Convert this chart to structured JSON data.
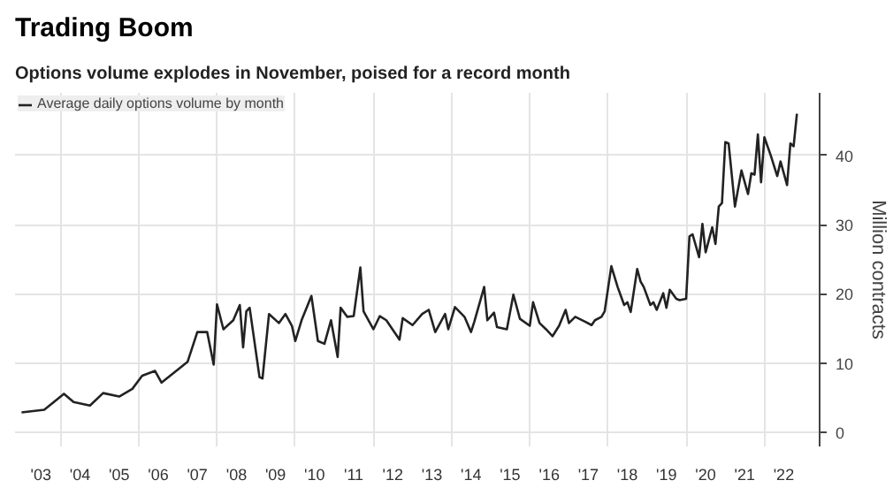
{
  "chart_data": {
    "type": "line",
    "title": "Trading Boom",
    "subtitle": "Options volume explodes in November, poised for a record month",
    "ylabel": "Million contracts",
    "legend": "top left",
    "grid": true,
    "line_style": "solid",
    "xlim": [
      "2002-11",
      "2023-06"
    ],
    "ylim": [
      -2,
      49
    ],
    "yticks": [
      0,
      10,
      20,
      30,
      40
    ],
    "xticks": [
      {
        "value": "2003-07",
        "label": "'03"
      },
      {
        "value": "2004-07",
        "label": "'04"
      },
      {
        "value": "2005-07",
        "label": "'05"
      },
      {
        "value": "2006-07",
        "label": "'06"
      },
      {
        "value": "2007-07",
        "label": "'07"
      },
      {
        "value": "2008-07",
        "label": "'08"
      },
      {
        "value": "2009-07",
        "label": "'09"
      },
      {
        "value": "2010-07",
        "label": "'10"
      },
      {
        "value": "2011-07",
        "label": "'11"
      },
      {
        "value": "2012-07",
        "label": "'12"
      },
      {
        "value": "2013-07",
        "label": "'13"
      },
      {
        "value": "2014-07",
        "label": "'14"
      },
      {
        "value": "2015-07",
        "label": "'15"
      },
      {
        "value": "2016-07",
        "label": "'16"
      },
      {
        "value": "2017-07",
        "label": "'17"
      },
      {
        "value": "2018-07",
        "label": "'18"
      },
      {
        "value": "2019-07",
        "label": "'19"
      },
      {
        "value": "2020-07",
        "label": "'20"
      },
      {
        "value": "2021-07",
        "label": "'21"
      },
      {
        "value": "2022-07",
        "label": "'22"
      },
      {
        "value": "2004-01",
        "label": null
      },
      {
        "value": "2006-01",
        "label": null
      },
      {
        "value": "2008-01",
        "label": null
      },
      {
        "value": "2010-01",
        "label": null
      },
      {
        "value": "2012-01",
        "label": null
      },
      {
        "value": "2014-01",
        "label": null
      },
      {
        "value": "2016-01",
        "label": null
      },
      {
        "value": "2018-01",
        "label": null
      },
      {
        "value": "2020-01",
        "label": null
      },
      {
        "value": "2022-01",
        "label": null
      }
    ],
    "x": [
      "2003-01",
      "2003-08",
      "2004-02",
      "2004-05",
      "2004-10",
      "2005-02",
      "2005-07",
      "2005-11",
      "2006-02",
      "2006-06",
      "2006-08",
      "2007-01",
      "2007-04",
      "2007-07",
      "2007-10",
      "2007-12",
      "2008-01",
      "2008-03",
      "2008-06",
      "2008-08",
      "2008-09",
      "2008-10",
      "2008-11",
      "2009-02",
      "2009-03",
      "2009-05",
      "2009-08",
      "2009-10",
      "2009-12",
      "2010-01",
      "2010-03",
      "2010-06",
      "2010-08",
      "2010-10",
      "2010-12",
      "2011-02",
      "2011-03",
      "2011-05",
      "2011-07",
      "2011-09",
      "2011-10",
      "2012-01",
      "2012-03",
      "2012-05",
      "2012-09",
      "2012-10",
      "2013-01",
      "2013-04",
      "2013-06",
      "2013-08",
      "2013-11",
      "2013-12",
      "2014-02",
      "2014-05",
      "2014-07",
      "2014-08",
      "2014-11",
      "2014-12",
      "2015-02",
      "2015-03",
      "2015-06",
      "2015-08",
      "2015-10",
      "2016-01",
      "2016-02",
      "2016-04",
      "2016-06",
      "2016-08",
      "2016-10",
      "2016-12",
      "2017-01",
      "2017-03",
      "2017-06",
      "2017-08",
      "2017-09",
      "2017-11",
      "2017-12",
      "2018-02",
      "2018-04",
      "2018-06",
      "2018-07",
      "2018-08",
      "2018-10",
      "2018-11",
      "2018-12",
      "2019-02",
      "2019-03",
      "2019-04",
      "2019-06",
      "2019-07",
      "2019-08",
      "2019-10",
      "2019-11",
      "2020-01",
      "2020-02",
      "2020-03",
      "2020-05",
      "2020-06",
      "2020-07",
      "2020-09",
      "2020-10",
      "2020-11",
      "2020-12",
      "2021-01",
      "2021-02",
      "2021-04",
      "2021-06",
      "2021-08",
      "2021-09",
      "2021-10",
      "2021-11",
      "2021-12",
      "2022-01",
      "2022-03",
      "2022-05",
      "2022-06",
      "2022-08",
      "2022-09",
      "2022-10",
      "2022-11"
    ],
    "series": [
      {
        "name": "Average daily options volume by month",
        "color": "#222222",
        "values": [
          2.9,
          3.3,
          5.6,
          4.4,
          3.9,
          5.7,
          5.2,
          6.3,
          8.2,
          8.9,
          7.2,
          9.1,
          10.2,
          14.5,
          14.5,
          9.8,
          18.5,
          14.9,
          16.2,
          18.4,
          12.3,
          17.5,
          18.0,
          8.0,
          7.8,
          17.1,
          15.8,
          17.1,
          15.4,
          13.2,
          16.2,
          19.7,
          13.2,
          12.8,
          16.2,
          10.9,
          18.0,
          16.7,
          16.8,
          23.8,
          17.5,
          14.9,
          16.8,
          16.2,
          13.4,
          16.5,
          15.5,
          17.1,
          17.7,
          14.5,
          17.1,
          14.9,
          18.1,
          16.7,
          14.5,
          16.0,
          21.0,
          16.2,
          17.3,
          15.2,
          14.9,
          19.9,
          16.4,
          15.4,
          18.8,
          15.8,
          14.9,
          13.9,
          15.4,
          17.7,
          15.8,
          16.7,
          16.0,
          15.5,
          16.2,
          16.7,
          17.5,
          24.0,
          21.0,
          18.4,
          18.8,
          17.4,
          23.6,
          21.8,
          21.0,
          18.4,
          18.8,
          17.7,
          20.1,
          18.0,
          20.6,
          19.3,
          19.1,
          19.3,
          28.3,
          28.6,
          25.3,
          30.1,
          26.0,
          29.6,
          27.2,
          32.6,
          33.1,
          41.9,
          41.7,
          32.6,
          37.8,
          34.4,
          37.4,
          37.2,
          43.0,
          36.1,
          42.6,
          40.0,
          37.0,
          39.1,
          35.7,
          41.7,
          41.3,
          46.0
        ]
      }
    ]
  }
}
